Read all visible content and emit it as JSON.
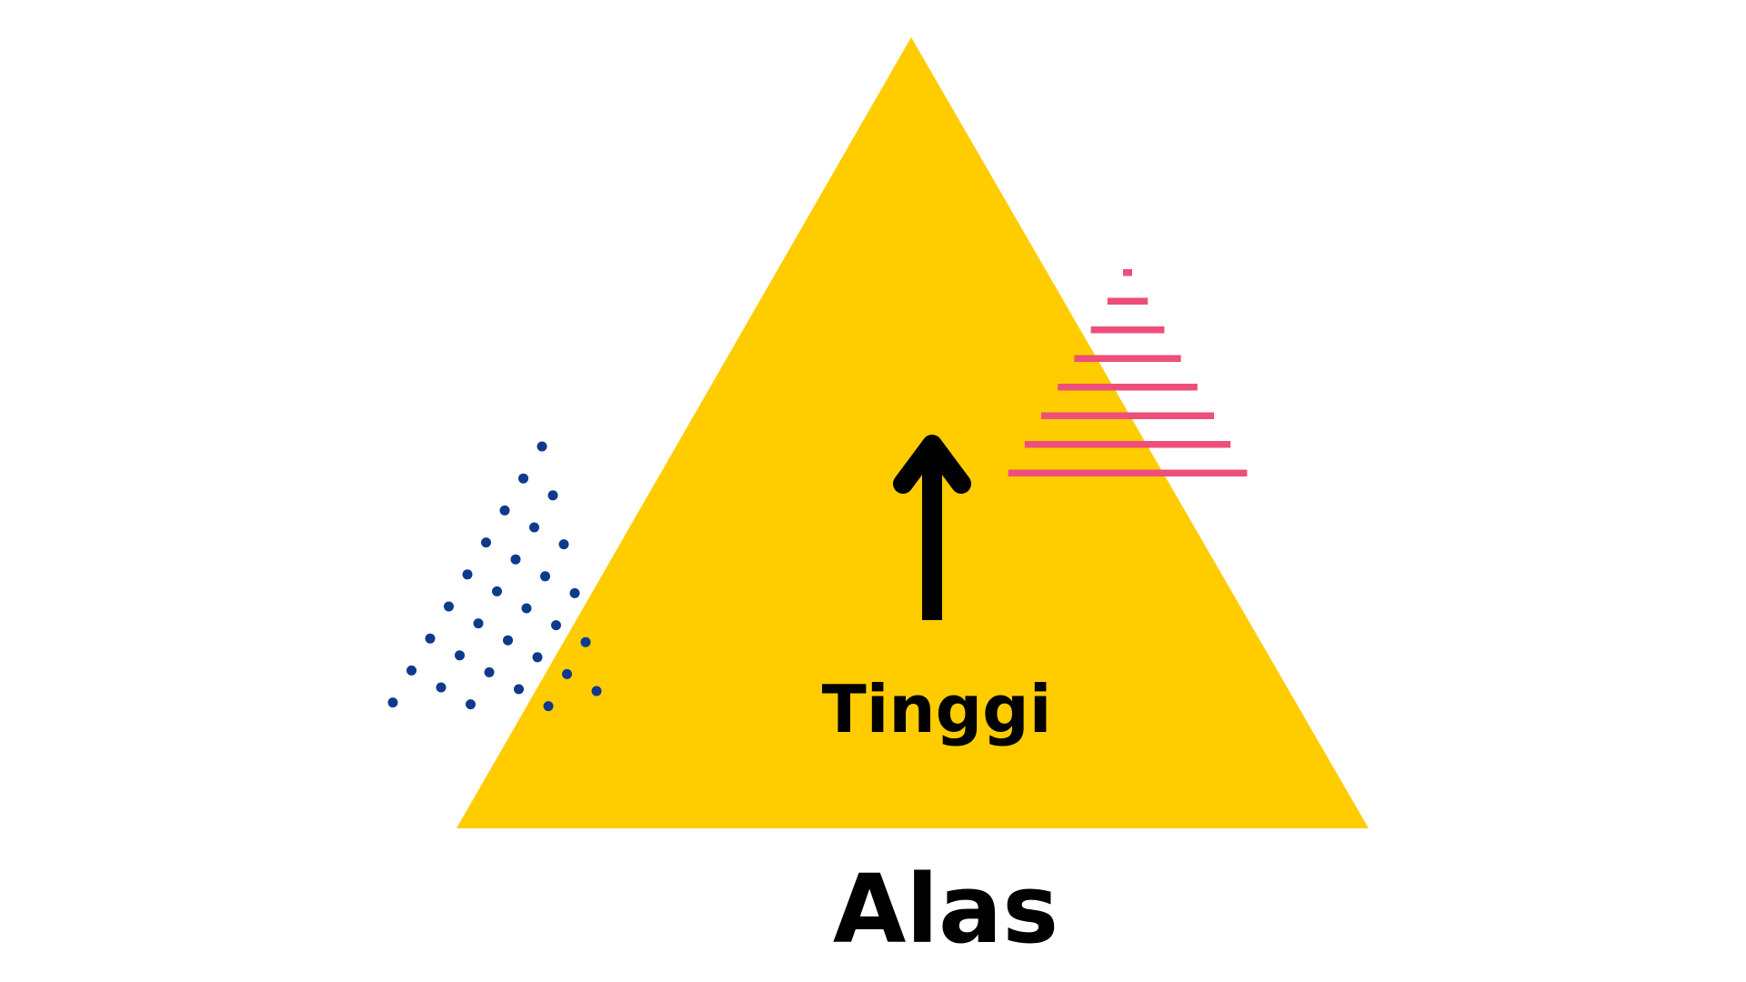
{
  "labels": {
    "height": "Tinggi",
    "base": "Alas"
  },
  "colors": {
    "background": "#ffffff",
    "triangle": "#ffcc00",
    "arrow": "#000000",
    "dots": "#0d3a8c",
    "stripes": "#ee4e7a"
  },
  "icons": {
    "arrow": "arrow-up-icon",
    "dots": "dot-pattern",
    "stripes": "stripe-pattern"
  }
}
